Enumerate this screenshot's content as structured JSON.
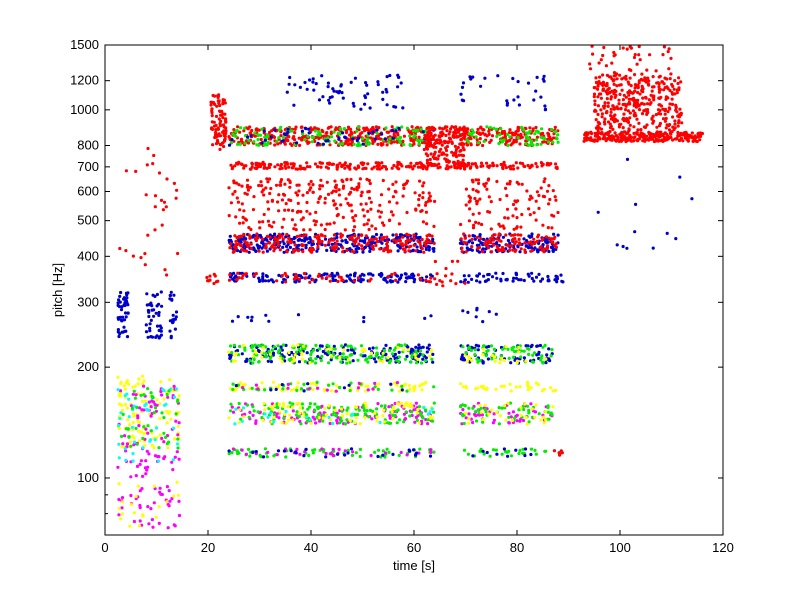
{
  "chart_data": {
    "type": "scatter",
    "xlabel": "time [s]",
    "ylabel": "pitch [Hz]",
    "xlim": [
      0,
      120
    ],
    "ylim": [
      70,
      1500
    ],
    "yscale": "log",
    "x_ticks": [
      0,
      20,
      40,
      60,
      80,
      100,
      120
    ],
    "x_tick_labels": [
      "0",
      "20",
      "40",
      "60",
      "80",
      "100",
      "120"
    ],
    "y_ticks": [
      100,
      200,
      300,
      400,
      500,
      600,
      700,
      800,
      1000,
      1200,
      1500
    ],
    "y_tick_labels": [
      "100",
      "200",
      "300",
      "400",
      "500",
      "600",
      "700",
      "800",
      "1000",
      "1200",
      "1500"
    ],
    "grid": false,
    "legend": "none",
    "colors": {
      "red": "#ff0000",
      "blue": "#0000cc",
      "green": "#00ee00",
      "yellow": "#ffff00",
      "magenta": "#ff00ff",
      "cyan": "#00ffff",
      "black": "#000000",
      "axis": "#000000",
      "background": "#ffffff"
    },
    "clusters": [
      {
        "color": "red",
        "x": [
          24,
          64
        ],
        "y": [
          800,
          900
        ],
        "n": 360
      },
      {
        "color": "red",
        "x": [
          69,
          88
        ],
        "y": [
          800,
          900
        ],
        "n": 170
      },
      {
        "color": "green",
        "x": [
          24,
          64
        ],
        "y": [
          800,
          900
        ],
        "n": 120
      },
      {
        "color": "green",
        "x": [
          69,
          88
        ],
        "y": [
          800,
          900
        ],
        "n": 60
      },
      {
        "color": "blue",
        "x": [
          24,
          64
        ],
        "y": [
          800,
          900
        ],
        "n": 50
      },
      {
        "color": "red",
        "x": [
          24,
          64
        ],
        "y": [
          690,
          720
        ],
        "n": 160
      },
      {
        "color": "red",
        "x": [
          69,
          88
        ],
        "y": [
          690,
          720
        ],
        "n": 70
      },
      {
        "color": "red",
        "x": [
          62,
          70
        ],
        "y": [
          690,
          900
        ],
        "n": 200
      },
      {
        "color": "red",
        "x": [
          20.5,
          23.5
        ],
        "y": [
          780,
          1100
        ],
        "n": 90
      },
      {
        "color": "blue",
        "x": [
          35,
          58
        ],
        "y": [
          1000,
          1250
        ],
        "n": 60
      },
      {
        "color": "blue",
        "x": [
          69,
          86
        ],
        "y": [
          1000,
          1250
        ],
        "n": 30
      },
      {
        "color": "red",
        "x": [
          24,
          64
        ],
        "y": [
          550,
          650
        ],
        "n": 160
      },
      {
        "color": "red",
        "x": [
          69,
          88
        ],
        "y": [
          550,
          650
        ],
        "n": 60
      },
      {
        "color": "red",
        "x": [
          24,
          64
        ],
        "y": [
          470,
          540
        ],
        "n": 90
      },
      {
        "color": "red",
        "x": [
          69,
          88
        ],
        "y": [
          470,
          540
        ],
        "n": 40
      },
      {
        "color": "blue",
        "x": [
          24,
          64
        ],
        "y": [
          410,
          460
        ],
        "n": 320
      },
      {
        "color": "blue",
        "x": [
          69,
          88
        ],
        "y": [
          410,
          460
        ],
        "n": 140
      },
      {
        "color": "red",
        "x": [
          24,
          64
        ],
        "y": [
          410,
          460
        ],
        "n": 220
      },
      {
        "color": "red",
        "x": [
          69,
          88
        ],
        "y": [
          410,
          460
        ],
        "n": 100
      },
      {
        "color": "blue",
        "x": [
          24,
          64
        ],
        "y": [
          340,
          360
        ],
        "n": 140
      },
      {
        "color": "blue",
        "x": [
          69,
          89
        ],
        "y": [
          340,
          360
        ],
        "n": 60
      },
      {
        "color": "red",
        "x": [
          19.5,
          22
        ],
        "y": [
          335,
          360
        ],
        "n": 10
      },
      {
        "color": "red",
        "x": [
          24,
          64
        ],
        "y": [
          340,
          360
        ],
        "n": 50
      },
      {
        "color": "red",
        "x": [
          64,
          70
        ],
        "y": [
          330,
          390
        ],
        "n": 15
      },
      {
        "color": "blue",
        "x": [
          24,
          64
        ],
        "y": [
          265,
          280
        ],
        "n": 12
      },
      {
        "color": "blue",
        "x": [
          69,
          78
        ],
        "y": [
          265,
          290
        ],
        "n": 8
      },
      {
        "color": "blue",
        "x": [
          24,
          64
        ],
        "y": [
          205,
          230
        ],
        "n": 160
      },
      {
        "color": "blue",
        "x": [
          69,
          87
        ],
        "y": [
          205,
          230
        ],
        "n": 70
      },
      {
        "color": "green",
        "x": [
          24,
          64
        ],
        "y": [
          205,
          230
        ],
        "n": 140
      },
      {
        "color": "green",
        "x": [
          69,
          87
        ],
        "y": [
          205,
          230
        ],
        "n": 60
      },
      {
        "color": "yellow",
        "x": [
          24,
          64
        ],
        "y": [
          205,
          230
        ],
        "n": 50
      },
      {
        "color": "yellow",
        "x": [
          69,
          87
        ],
        "y": [
          205,
          230
        ],
        "n": 20
      },
      {
        "color": "yellow",
        "x": [
          24,
          64
        ],
        "y": [
          172,
          182
        ],
        "n": 70
      },
      {
        "color": "yellow",
        "x": [
          69,
          88
        ],
        "y": [
          172,
          182
        ],
        "n": 30
      },
      {
        "color": "green",
        "x": [
          24,
          64
        ],
        "y": [
          172,
          182
        ],
        "n": 30
      },
      {
        "color": "magenta",
        "x": [
          24,
          64
        ],
        "y": [
          172,
          182
        ],
        "n": 15
      },
      {
        "color": "blue",
        "x": [
          24,
          64
        ],
        "y": [
          172,
          182
        ],
        "n": 10
      },
      {
        "color": "magenta",
        "x": [
          24,
          64
        ],
        "y": [
          140,
          160
        ],
        "n": 120
      },
      {
        "color": "magenta",
        "x": [
          69,
          87
        ],
        "y": [
          140,
          160
        ],
        "n": 50
      },
      {
        "color": "green",
        "x": [
          24,
          64
        ],
        "y": [
          140,
          160
        ],
        "n": 120
      },
      {
        "color": "green",
        "x": [
          69,
          87
        ],
        "y": [
          140,
          160
        ],
        "n": 50
      },
      {
        "color": "yellow",
        "x": [
          24,
          64
        ],
        "y": [
          140,
          160
        ],
        "n": 80
      },
      {
        "color": "yellow",
        "x": [
          69,
          87
        ],
        "y": [
          140,
          160
        ],
        "n": 30
      },
      {
        "color": "cyan",
        "x": [
          24,
          64
        ],
        "y": [
          140,
          160
        ],
        "n": 20
      },
      {
        "color": "green",
        "x": [
          24,
          64
        ],
        "y": [
          114,
          120
        ],
        "n": 60
      },
      {
        "color": "green",
        "x": [
          69,
          88
        ],
        "y": [
          114,
          120
        ],
        "n": 25
      },
      {
        "color": "magenta",
        "x": [
          24,
          64
        ],
        "y": [
          114,
          120
        ],
        "n": 30
      },
      {
        "color": "blue",
        "x": [
          24,
          64
        ],
        "y": [
          114,
          120
        ],
        "n": 25
      },
      {
        "color": "blue",
        "x": [
          69,
          88
        ],
        "y": [
          114,
          120
        ],
        "n": 10
      },
      {
        "color": "red",
        "x": [
          87,
          89
        ],
        "y": [
          114,
          120
        ],
        "n": 6
      },
      {
        "color": "blue",
        "x": [
          2.5,
          4.5
        ],
        "y": [
          240,
          320
        ],
        "n": 45
      },
      {
        "color": "blue",
        "x": [
          8,
          11
        ],
        "y": [
          240,
          320
        ],
        "n": 40
      },
      {
        "color": "blue",
        "x": [
          12.5,
          14
        ],
        "y": [
          240,
          320
        ],
        "n": 20
      },
      {
        "color": "yellow",
        "x": [
          2.5,
          14.5
        ],
        "y": [
          120,
          190
        ],
        "n": 110
      },
      {
        "color": "magenta",
        "x": [
          2.5,
          14.5
        ],
        "y": [
          100,
          180
        ],
        "n": 80
      },
      {
        "color": "cyan",
        "x": [
          2.5,
          14.5
        ],
        "y": [
          110,
          175
        ],
        "n": 40
      },
      {
        "color": "green",
        "x": [
          2.5,
          14.5
        ],
        "y": [
          120,
          175
        ],
        "n": 40
      },
      {
        "color": "magenta",
        "x": [
          2.5,
          14.5
        ],
        "y": [
          73,
          95
        ],
        "n": 40
      },
      {
        "color": "yellow",
        "x": [
          2.5,
          14.5
        ],
        "y": [
          73,
          100
        ],
        "n": 20
      },
      {
        "color": "red",
        "x": [
          2.5,
          14.5
        ],
        "y": [
          350,
          800
        ],
        "n": 30
      },
      {
        "color": "red",
        "x": [
          93,
          116
        ],
        "y": [
          820,
          870
        ],
        "n": 260
      },
      {
        "color": "red",
        "x": [
          95,
          112
        ],
        "y": [
          870,
          1250
        ],
        "n": 360
      },
      {
        "color": "red",
        "x": [
          94,
          110
        ],
        "y": [
          1250,
          1500
        ],
        "n": 40
      },
      {
        "color": "blue",
        "x": [
          95,
          114
        ],
        "y": [
          420,
          760
        ],
        "n": 12
      }
    ]
  }
}
